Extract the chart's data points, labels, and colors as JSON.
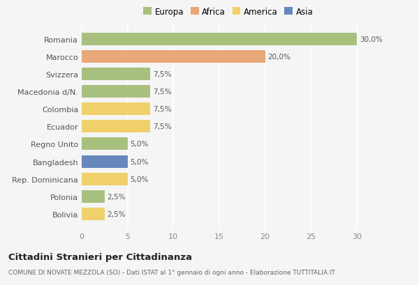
{
  "countries": [
    "Romania",
    "Marocco",
    "Svizzera",
    "Macedonia d/N.",
    "Colombia",
    "Ecuador",
    "Regno Unito",
    "Bangladesh",
    "Rep. Dominicana",
    "Polonia",
    "Bolivia"
  ],
  "values": [
    30.0,
    20.0,
    7.5,
    7.5,
    7.5,
    7.5,
    5.0,
    5.0,
    5.0,
    2.5,
    2.5
  ],
  "colors": [
    "#a8c07e",
    "#e8a878",
    "#a8c07e",
    "#a8c07e",
    "#f0d06a",
    "#f0d06a",
    "#a8c07e",
    "#6688bb",
    "#f0d06a",
    "#a8c07e",
    "#f0d06a"
  ],
  "labels": [
    "30,0%",
    "20,0%",
    "7,5%",
    "7,5%",
    "7,5%",
    "7,5%",
    "5,0%",
    "5,0%",
    "5,0%",
    "2,5%",
    "2,5%"
  ],
  "legend_labels": [
    "Europa",
    "Africa",
    "America",
    "Asia"
  ],
  "legend_colors": [
    "#a8c07e",
    "#e8a878",
    "#f0d06a",
    "#6688bb"
  ],
  "title": "Cittadini Stranieri per Cittadinanza",
  "subtitle": "COMUNE DI NOVATE MEZZOLA (SO) - Dati ISTAT al 1° gennaio di ogni anno - Elaborazione TUTTITALIA.IT",
  "xlim": [
    0,
    32
  ],
  "xticks": [
    0,
    5,
    10,
    15,
    20,
    25,
    30
  ],
  "bg_color": "#f5f5f5",
  "grid_color": "#ffffff",
  "bar_height": 0.72
}
